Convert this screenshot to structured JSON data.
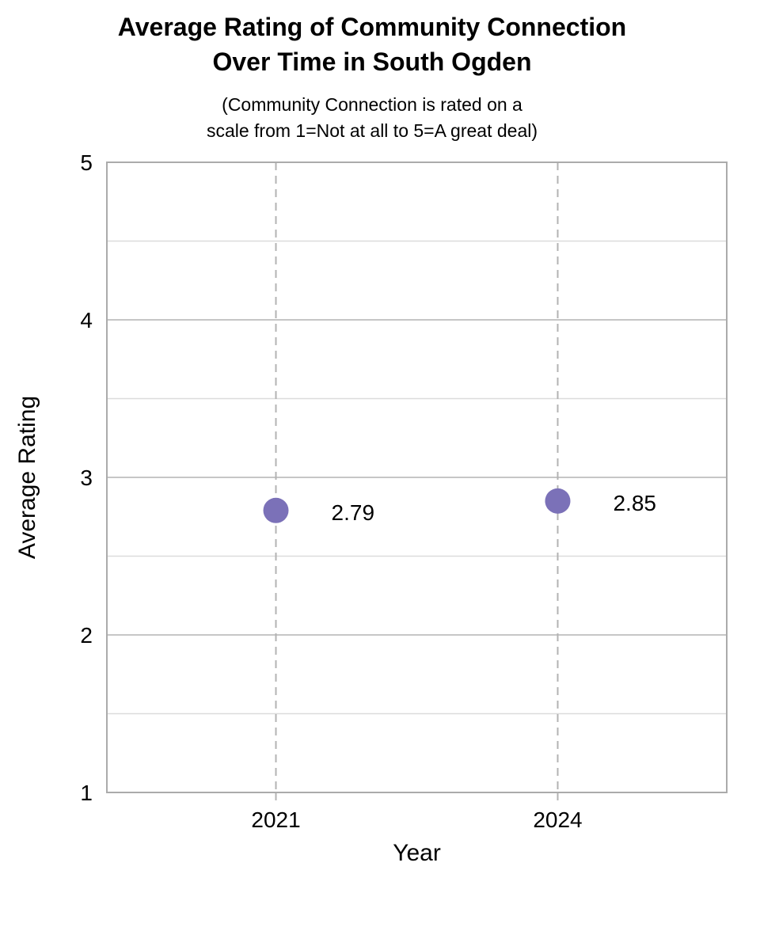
{
  "header": {
    "title_line1": "Average Rating of Community Connection",
    "title_line2": "Over Time in South Ogden",
    "subtitle_line1": "(Community Connection is rated on a",
    "subtitle_line2": "scale from 1=Not at all to 5=A great deal)"
  },
  "chart_data": {
    "type": "scatter",
    "title": "Average Rating of Community Connection Over Time in South Ogden",
    "subtitle": "(Community Connection is rated on a scale from 1=Not at all to 5=A great deal)",
    "categories": [
      "2021",
      "2024"
    ],
    "series": [
      {
        "name": "Average Rating",
        "values": [
          2.79,
          2.85
        ]
      }
    ],
    "point_labels": [
      "2.79",
      "2.85"
    ],
    "xlabel": "Year",
    "ylabel": "Average Rating",
    "ylim": [
      1,
      5
    ],
    "y_major_ticks": [
      1,
      2,
      3,
      4,
      5
    ],
    "y_minor_step": 0.5,
    "grid": true,
    "legend": "none",
    "colors": {
      "point": "#7b71b8",
      "major_grid": "#c6c6c6",
      "minor_grid": "#dcdcdc",
      "plot_border": "#ababab",
      "dashed_vertical": "#b3b3b3",
      "text": "#000000"
    }
  }
}
